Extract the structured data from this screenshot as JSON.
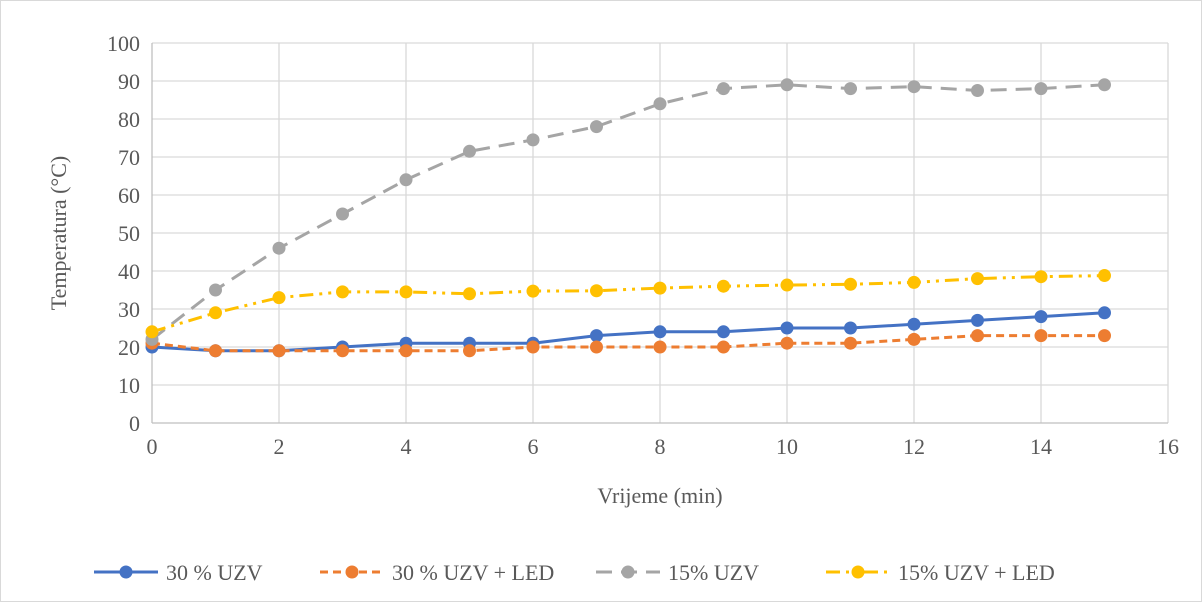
{
  "chart_data": {
    "type": "line",
    "title": "",
    "xlabel": "Vrijeme (min)",
    "ylabel": "Temperatura (°C)",
    "xlim": [
      0,
      16
    ],
    "ylim": [
      0,
      100
    ],
    "x_ticks": [
      0,
      2,
      4,
      6,
      8,
      10,
      12,
      14,
      16
    ],
    "y_ticks": [
      0,
      10,
      20,
      30,
      40,
      50,
      60,
      70,
      80,
      90,
      100
    ],
    "grid": true,
    "legend_position": "bottom",
    "x": [
      0,
      1,
      2,
      3,
      4,
      5,
      6,
      7,
      8,
      9,
      10,
      11,
      12,
      13,
      14,
      15
    ],
    "series": [
      {
        "name": "30 % UZV",
        "color": "#4472c4",
        "dash": "solid",
        "values": [
          20,
          19,
          19,
          20,
          21,
          21,
          21,
          23,
          24,
          24,
          25,
          25,
          26,
          27,
          28,
          29
        ]
      },
      {
        "name": "30 % UZV + LED",
        "color": "#ed7d31",
        "dash": "dash",
        "values": [
          21,
          19,
          19,
          19,
          19,
          19,
          20,
          20,
          20,
          20,
          21,
          21,
          22,
          23,
          23,
          23
        ]
      },
      {
        "name": "15% UZV",
        "color": "#a5a5a5",
        "dash": "longdash",
        "values": [
          22,
          35,
          46,
          55,
          64,
          71.5,
          74.5,
          78,
          84,
          88,
          89,
          88,
          88.5,
          87.5,
          88,
          89
        ]
      },
      {
        "name": "15% UZV + LED",
        "color": "#ffc000",
        "dash": "dashdotdot",
        "values": [
          24,
          29,
          33,
          34.5,
          34.5,
          34,
          34.7,
          34.8,
          35.5,
          36,
          36.3,
          36.5,
          37,
          38,
          38.5,
          38.8
        ]
      }
    ]
  }
}
